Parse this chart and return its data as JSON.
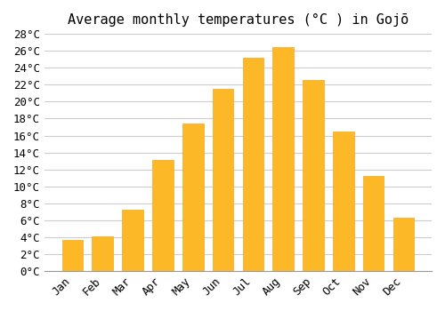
{
  "title": "Average monthly temperatures (°C ) in Gojō",
  "months": [
    "Jan",
    "Feb",
    "Mar",
    "Apr",
    "May",
    "Jun",
    "Jul",
    "Aug",
    "Sep",
    "Oct",
    "Nov",
    "Dec"
  ],
  "temperatures": [
    3.7,
    4.1,
    7.2,
    13.1,
    17.4,
    21.5,
    25.2,
    26.4,
    22.6,
    16.5,
    11.2,
    6.3
  ],
  "bar_color": "#FDB827",
  "bar_edge_color": "#F5A623",
  "ylim": [
    0,
    28
  ],
  "yticks": [
    0,
    2,
    4,
    6,
    8,
    10,
    12,
    14,
    16,
    18,
    20,
    22,
    24,
    26,
    28
  ],
  "background_color": "#ffffff",
  "grid_color": "#cccccc",
  "title_fontsize": 11,
  "tick_fontsize": 9,
  "font_family": "monospace"
}
